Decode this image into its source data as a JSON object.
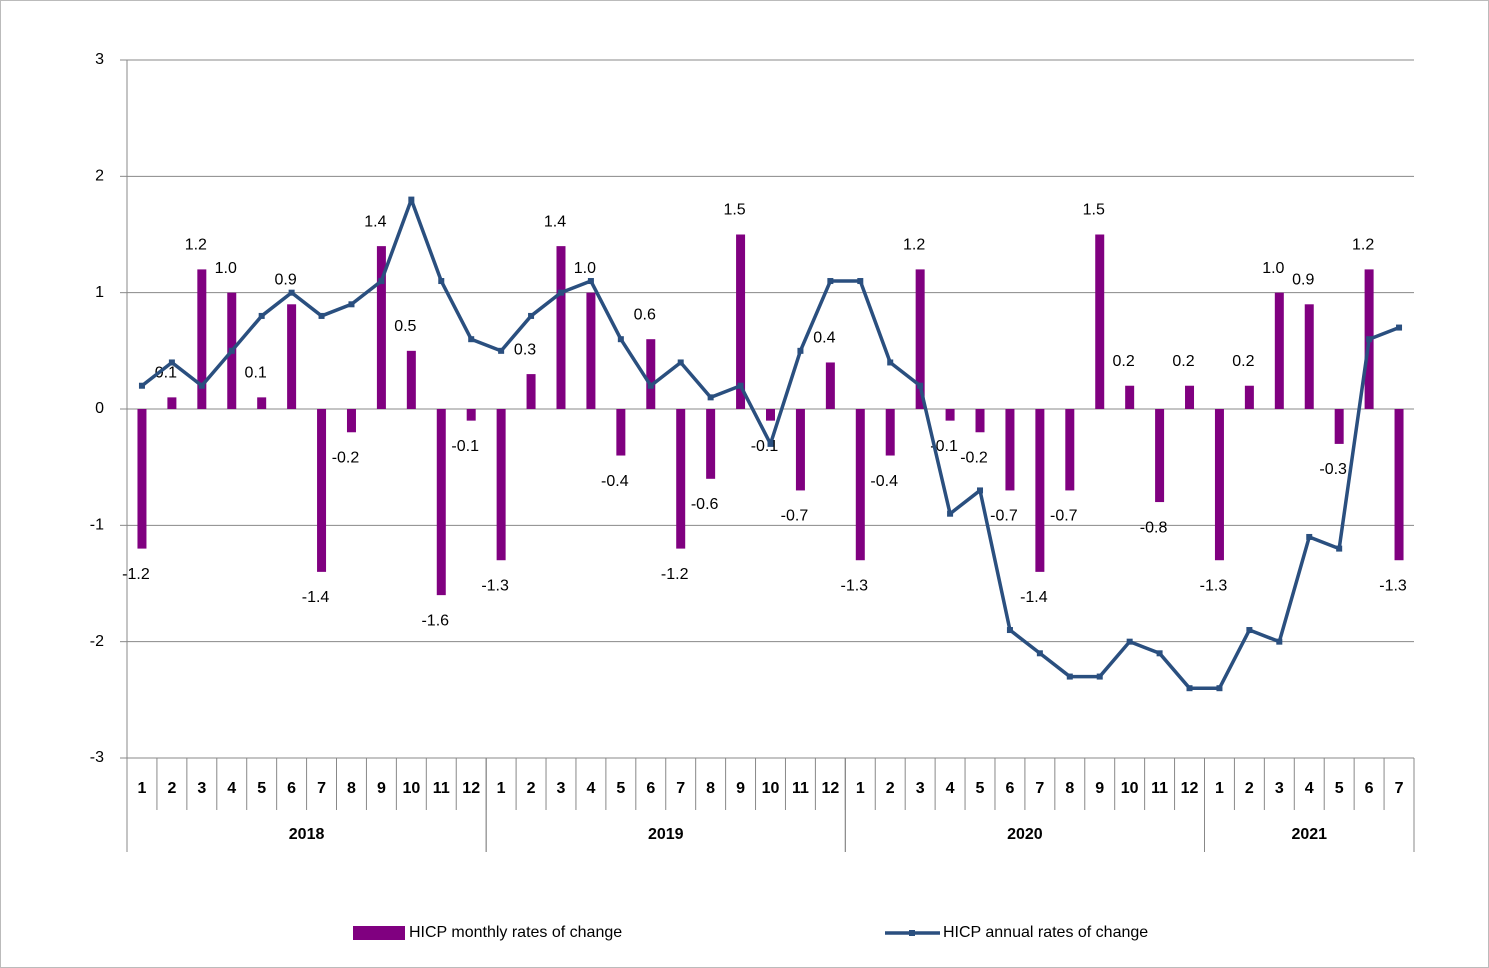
{
  "chart_data": {
    "type": "combo",
    "categories": [
      "1",
      "2",
      "3",
      "4",
      "5",
      "6",
      "7",
      "8",
      "9",
      "10",
      "11",
      "12",
      "1",
      "2",
      "3",
      "4",
      "5",
      "6",
      "7",
      "8",
      "9",
      "10",
      "11",
      "12",
      "1",
      "2",
      "3",
      "4",
      "5",
      "6",
      "7",
      "8",
      "9",
      "10",
      "11",
      "12",
      "1",
      "2",
      "3",
      "4",
      "5",
      "6",
      "7"
    ],
    "x_groups": [
      {
        "label": "2018",
        "span": 12
      },
      {
        "label": "2019",
        "span": 12
      },
      {
        "label": "2020",
        "span": 12
      },
      {
        "label": "2021",
        "span": 7
      }
    ],
    "ylim": [
      -3,
      3
    ],
    "yticks": [
      -3,
      -2,
      -1,
      0,
      1,
      2,
      3
    ],
    "grid": true,
    "legend": "bottom",
    "series": [
      {
        "name": "HICP monthly rates of change",
        "type": "bar",
        "color": "#800080",
        "values": [
          -1.2,
          0.1,
          1.2,
          1.0,
          0.1,
          0.9,
          -1.4,
          -0.2,
          1.4,
          0.5,
          -1.6,
          -0.1,
          -1.3,
          0.3,
          1.4,
          1.0,
          -0.4,
          0.6,
          -1.2,
          -0.6,
          1.5,
          -0.1,
          -0.7,
          0.4,
          -1.3,
          -0.4,
          1.2,
          -0.1,
          -0.2,
          -0.7,
          -1.4,
          -0.7,
          1.5,
          0.2,
          -0.8,
          0.2,
          -1.3,
          0.2,
          1.0,
          0.9,
          -0.3,
          1.2,
          -1.3
        ],
        "value_labels": [
          "-1.2",
          "0.1",
          "1.2",
          "1.0",
          "0.1",
          "0.9",
          "-1.4",
          "-0.2",
          "1.4",
          "0.5",
          "-1.6",
          "-0.1",
          "-1.3",
          "0.3",
          "1.4",
          "1.0",
          "-0.4",
          "0.6",
          "-1.2",
          "-0.6",
          "1.5",
          "-0.1",
          "-0.7",
          "0.4",
          "-1.3",
          "-0.4",
          "1.2",
          "-0.1",
          "-0.2",
          "-0.7",
          "-1.4",
          "-0.7",
          "1.5",
          "0.2",
          "-0.8",
          "0.2",
          "-1.3",
          "0.2",
          "1.0",
          "0.9",
          "-0.3",
          "1.2",
          "-1.3"
        ]
      },
      {
        "name": "HICP annual rates of change",
        "type": "line",
        "color": "#2a4f7f",
        "values": [
          0.2,
          0.4,
          0.2,
          0.5,
          0.8,
          1.0,
          0.8,
          0.9,
          1.1,
          1.8,
          1.1,
          0.6,
          0.5,
          0.8,
          1.0,
          1.1,
          0.6,
          0.2,
          0.4,
          0.1,
          0.2,
          -0.3,
          0.5,
          1.1,
          1.1,
          0.4,
          0.2,
          -0.9,
          -0.7,
          -1.9,
          -2.1,
          -2.3,
          -2.3,
          -2.0,
          -2.1,
          -2.4,
          -2.4,
          -1.9,
          -2.0,
          -1.1,
          -1.2,
          0.6,
          0.7
        ]
      }
    ]
  }
}
